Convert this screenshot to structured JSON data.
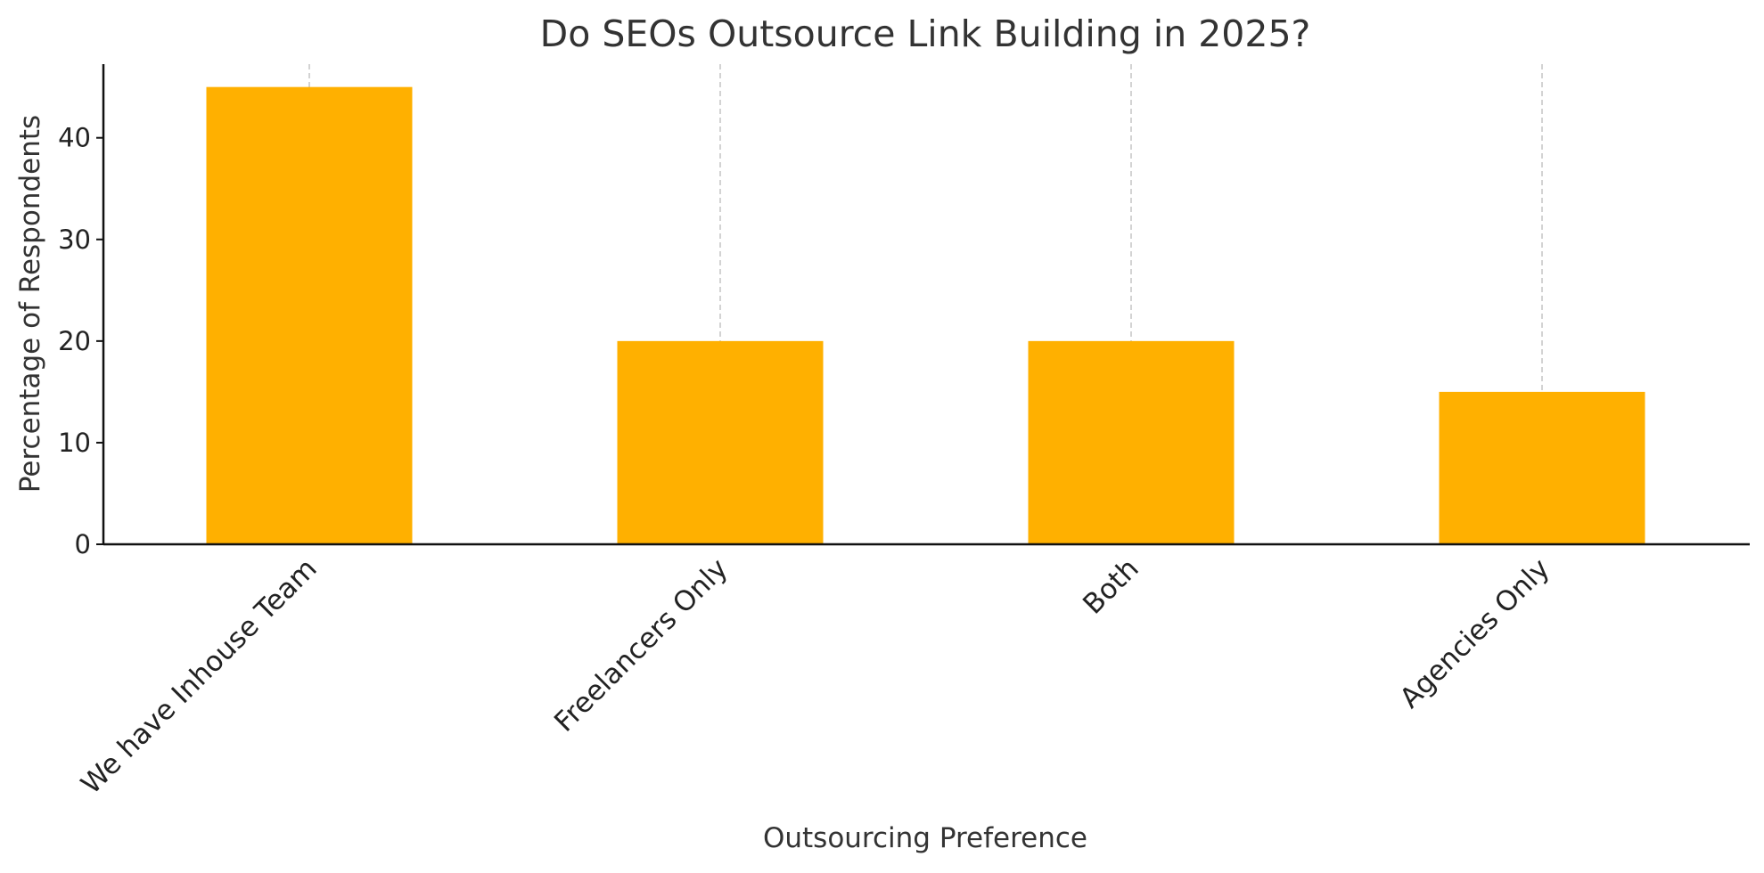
{
  "chart_data": {
    "type": "bar",
    "title": "Do SEOs Outsource Link Building in 2025?",
    "xlabel": "Outsourcing Preference",
    "ylabel": "Percentage of Respondents",
    "categories": [
      "We have Inhouse Team",
      "Freelancers Only",
      "Both",
      "Agencies Only"
    ],
    "values": [
      45,
      20,
      20,
      15
    ],
    "yticks": [
      0,
      10,
      20,
      30,
      40
    ],
    "ylim": [
      0,
      47.25
    ],
    "bar_color": "#ffb000",
    "grid": "vertical dashed at categories",
    "legend": "none"
  }
}
